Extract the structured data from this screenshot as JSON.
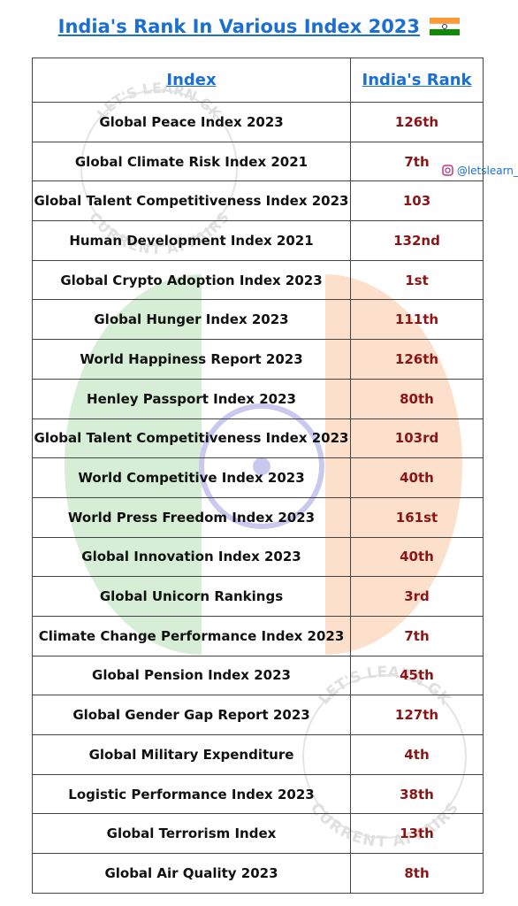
{
  "title": "India's Rank In Various Index 2023",
  "handle": "@letslearn_",
  "watermark": {
    "top": "LET'S LEARN GK",
    "bottom": "CURRENT AFFAIRS"
  },
  "table": {
    "header": [
      "Index",
      "India's Rank"
    ],
    "rows": [
      [
        "Global Peace Index 2023",
        "126th"
      ],
      [
        "Global Climate Risk Index 2021",
        "7th"
      ],
      [
        "Global Talent Competitiveness Index 2023",
        "103"
      ],
      [
        "Human Development Index 2021",
        "132nd"
      ],
      [
        "Global Crypto Adoption Index 2023",
        "1st"
      ],
      [
        "Global Hunger Index 2023",
        "111th"
      ],
      [
        "World Happiness Report 2023",
        "126th"
      ],
      [
        "Henley Passport Index 2023",
        "80th"
      ],
      [
        "Global Talent Competitiveness Index 2023",
        "103rd"
      ],
      [
        "World Competitive Index 2023",
        "40th"
      ],
      [
        "World Press Freedom Index 2023",
        "161st"
      ],
      [
        "Global Innovation Index 2023",
        "40th"
      ],
      [
        "Global Unicorn Rankings",
        "3rd"
      ],
      [
        "Climate Change Performance Index 2023",
        "7th"
      ],
      [
        "Global Pension Index 2023",
        "45th"
      ],
      [
        "Global Gender Gap Report 2023",
        "127th"
      ],
      [
        "Global Military Expenditure",
        "4th"
      ],
      [
        "Logistic Performance Index 2023",
        "38th"
      ],
      [
        "Global Terrorism Index",
        "13th"
      ],
      [
        "Global Air Quality 2023",
        "8th"
      ]
    ]
  }
}
